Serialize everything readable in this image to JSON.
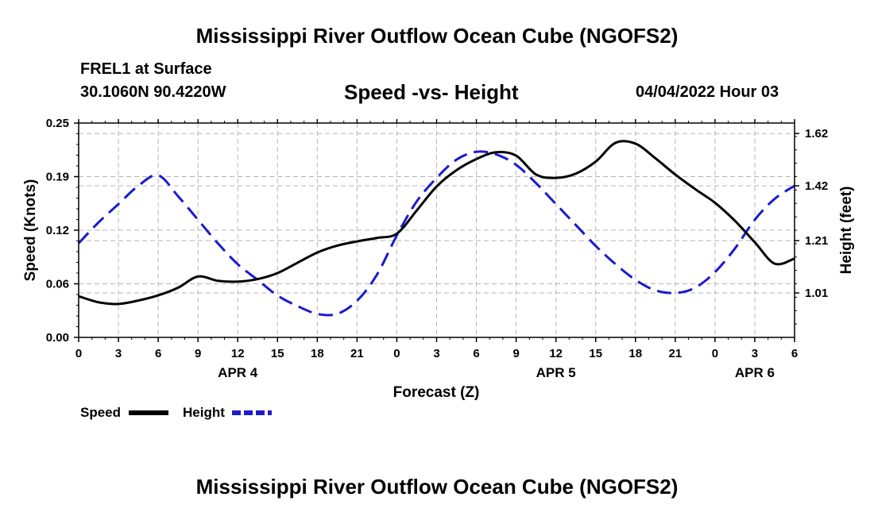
{
  "header": {
    "title": "Mississippi River Outflow Ocean Cube (NGOFS2)",
    "station": "FREL1 at Surface",
    "coordinates": "30.1060N  90.4220W",
    "subtitle": "Speed -vs- Height",
    "datetime": "04/04/2022 Hour 03"
  },
  "footer": {
    "title": "Mississippi River Outflow Ocean Cube (NGOFS2)"
  },
  "colors": {
    "speed": "#000000",
    "height": "#1a1ad0",
    "grid": "#b4b4b4"
  },
  "chart_data": {
    "type": "line",
    "title": "Speed -vs- Height",
    "xlabel": "Forecast (Z)",
    "ylabel": "Speed (Knots)",
    "y2label": "Height (feet)",
    "xlim": [
      0,
      54
    ],
    "ylim": [
      0,
      0.25
    ],
    "y2lim": [
      0.84,
      1.66
    ],
    "x_ticks": [
      0,
      3,
      6,
      9,
      12,
      15,
      18,
      21,
      24,
      27,
      30,
      33,
      36,
      39,
      42,
      45,
      48,
      51,
      54
    ],
    "x_tick_labels": [
      "0",
      "3",
      "6",
      "9",
      "12",
      "15",
      "18",
      "21",
      "0",
      "3",
      "6",
      "9",
      "12",
      "15",
      "18",
      "21",
      "0",
      "3",
      "6"
    ],
    "date_labels": [
      {
        "x": 12,
        "label": "APR 4"
      },
      {
        "x": 36,
        "label": "APR 5"
      },
      {
        "x": 51,
        "label": "APR 6"
      }
    ],
    "y_ticks": [
      0.0,
      0.0625,
      0.125,
      0.1875,
      0.25
    ],
    "y_tick_labels": [
      "0.00",
      "0.06",
      "0.12",
      "0.19",
      "0.25"
    ],
    "y2_ticks": [
      1.01,
      1.21,
      1.42,
      1.62
    ],
    "y2_tick_labels": [
      "1.01",
      "1.21",
      "1.42",
      "1.62"
    ],
    "grid": true,
    "legend_position": "bottom-left",
    "series": [
      {
        "name": "Speed",
        "axis": "left",
        "style": "solid",
        "x": [
          0,
          1.5,
          3,
          4.5,
          6,
          7.5,
          9,
          10.5,
          12,
          13.5,
          15,
          16.5,
          18,
          19.5,
          21,
          22.5,
          24,
          25.5,
          27,
          28.5,
          30,
          31.5,
          33,
          34.5,
          36,
          37.5,
          39,
          40.5,
          42,
          43.5,
          45,
          46.5,
          48,
          49.5,
          51,
          52.5,
          54
        ],
        "values": [
          0.048,
          0.041,
          0.039,
          0.043,
          0.049,
          0.058,
          0.071,
          0.066,
          0.065,
          0.068,
          0.075,
          0.087,
          0.099,
          0.107,
          0.112,
          0.116,
          0.121,
          0.148,
          0.176,
          0.195,
          0.208,
          0.216,
          0.212,
          0.19,
          0.186,
          0.191,
          0.205,
          0.227,
          0.226,
          0.209,
          0.19,
          0.173,
          0.157,
          0.136,
          0.111,
          0.086,
          0.092
        ]
      },
      {
        "name": "Height",
        "axis": "right",
        "style": "dashed",
        "x": [
          0,
          1.5,
          3,
          4.5,
          6,
          7.5,
          9,
          10.5,
          12,
          13.5,
          15,
          16.5,
          18,
          19.5,
          21,
          22.5,
          24,
          25.5,
          27,
          28.5,
          30,
          31.5,
          33,
          34.5,
          36,
          37.5,
          39,
          40.5,
          42,
          43.5,
          45,
          46.5,
          48,
          49.5,
          51,
          52.5,
          54
        ],
        "values": [
          1.2,
          1.28,
          1.35,
          1.42,
          1.46,
          1.38,
          1.29,
          1.2,
          1.12,
          1.06,
          1.0,
          0.96,
          0.93,
          0.93,
          0.98,
          1.08,
          1.23,
          1.36,
          1.45,
          1.52,
          1.55,
          1.54,
          1.5,
          1.43,
          1.35,
          1.27,
          1.19,
          1.12,
          1.06,
          1.02,
          1.01,
          1.03,
          1.09,
          1.18,
          1.29,
          1.37,
          1.42
        ]
      }
    ]
  },
  "legend": {
    "speed_label": "Speed",
    "height_label": "Height"
  }
}
